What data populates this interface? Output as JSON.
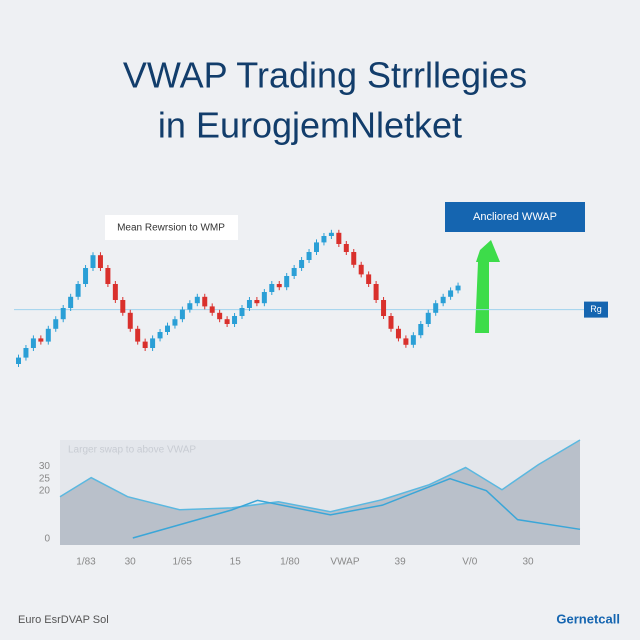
{
  "chart_data": [
    {
      "type": "candlestick",
      "title": [
        "VWAP Trading Strrllegies",
        "in EurogjemNletket"
      ],
      "annotations": [
        "Mean Rewrsion to WMP",
        "Ancliored WWAP"
      ],
      "vwap": 44,
      "vwap_label": "Rg",
      "up_color": "#2a9fd6",
      "down_color": "#d9302c",
      "ylim": [
        0,
        100
      ],
      "open": [
        10,
        14,
        20,
        26,
        24,
        32,
        38,
        45,
        52,
        60,
        70,
        78,
        70,
        60,
        50,
        42,
        32,
        24,
        20,
        26,
        30,
        34,
        38,
        44,
        48,
        52,
        46,
        42,
        38,
        35,
        40,
        45,
        50,
        48,
        55,
        60,
        58,
        65,
        70,
        75,
        80,
        86,
        90,
        92,
        85,
        80,
        72,
        66,
        60,
        50,
        40,
        32,
        26,
        22,
        28,
        35,
        42,
        48,
        52,
        56
      ],
      "close": [
        14,
        20,
        26,
        24,
        32,
        38,
        45,
        52,
        60,
        70,
        78,
        70,
        60,
        50,
        42,
        32,
        24,
        20,
        26,
        30,
        34,
        38,
        44,
        48,
        52,
        46,
        42,
        38,
        35,
        40,
        45,
        50,
        48,
        55,
        60,
        58,
        65,
        70,
        75,
        80,
        86,
        90,
        92,
        85,
        80,
        72,
        66,
        60,
        50,
        40,
        32,
        26,
        22,
        28,
        35,
        42,
        48,
        52,
        56,
        59
      ]
    },
    {
      "type": "area",
      "subtitle": "Larger swap to above VWAP",
      "xlim": [
        0,
        100
      ],
      "ylim": [
        -2.5,
        41
      ],
      "yticks": [
        0,
        20,
        25,
        30
      ],
      "xticks": [
        {
          "value": 5,
          "label": "1/83"
        },
        {
          "value": 13.5,
          "label": "30"
        },
        {
          "value": 23.5,
          "label": "1/65"
        },
        {
          "value": 33.7,
          "label": "15"
        },
        {
          "value": 44.2,
          "label": "1/80"
        },
        {
          "value": 54.8,
          "label": "VWAP"
        },
        {
          "value": 65.4,
          "label": "39"
        },
        {
          "value": 78.8,
          "label": "V/0"
        },
        {
          "value": 90,
          "label": "30"
        }
      ],
      "series": [
        {
          "color": "#5bb8e0",
          "fill": "#b9c0ca",
          "x": [
            0,
            6,
            13,
            23,
            33,
            42,
            52,
            62,
            71,
            78,
            85,
            92,
            100
          ],
          "values": [
            17.5,
            25.4,
            17.5,
            12.1,
            12.9,
            15.4,
            11.3,
            16.3,
            22.5,
            29.6,
            20.4,
            30.8,
            41
          ]
        },
        {
          "color": "#3aa6d8",
          "fill": null,
          "x": [
            14,
            33,
            38,
            52,
            62,
            75,
            82,
            88,
            100
          ],
          "values": [
            0.4,
            12,
            16,
            10,
            14,
            25,
            20,
            8,
            4
          ]
        }
      ]
    }
  ],
  "footer": {
    "left": "Euro EsrDVAP Sol",
    "right": "Gernetcall"
  }
}
